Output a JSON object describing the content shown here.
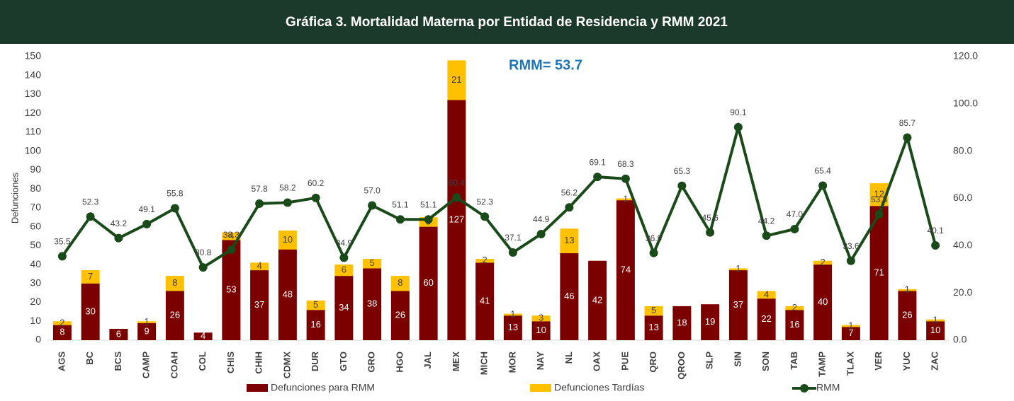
{
  "chart_data": {
    "type": "bar",
    "stacked": true,
    "title": "Gráfica 3.  Mortalidad Materna por Entidad de Residencia  y RMM 2021",
    "annotation": "RMM= 53.7",
    "y_label": "Defunciones",
    "categories": [
      "AGS",
      "BC",
      "BCS",
      "CAMP",
      "COAH",
      "COL",
      "CHIS",
      "CHIH",
      "CDMX",
      "DUR",
      "GTO",
      "GRO",
      "HGO",
      "JAL",
      "MEX",
      "MICH",
      "MOR",
      "NAY",
      "NL",
      "OAX",
      "PUE",
      "QRO",
      "QROO",
      "SLP",
      "SIN",
      "SON",
      "TAB",
      "TAMP",
      "TLAX",
      "VER",
      "YUC",
      "ZAC"
    ],
    "series": [
      {
        "name": "Defunciones para RMM",
        "color": "#7b0000",
        "text_color": "#ffffff",
        "values": [
          8,
          30,
          6,
          9,
          26,
          4,
          53,
          37,
          48,
          16,
          34,
          38,
          26,
          60,
          127,
          41,
          13,
          10,
          46,
          42,
          74,
          13,
          18,
          19,
          37,
          22,
          16,
          40,
          7,
          71,
          26,
          10
        ]
      },
      {
        "name": "Defunciones Tardías",
        "color": "#ffc000",
        "text_color": "#404040",
        "values": [
          2,
          7,
          0,
          1,
          8,
          0,
          4,
          4,
          10,
          5,
          6,
          5,
          8,
          5,
          21,
          2,
          1,
          3,
          13,
          0,
          1,
          5,
          0,
          0,
          1,
          4,
          2,
          2,
          1,
          12,
          1,
          1
        ]
      },
      {
        "name": "RMM",
        "color": "#1a4a1a",
        "type": "line",
        "axis": "y2",
        "values": [
          35.5,
          52.3,
          43.2,
          49.1,
          55.8,
          30.8,
          38.3,
          57.8,
          58.2,
          60.2,
          34.9,
          57.0,
          51.1,
          51.1,
          60.4,
          52.3,
          37.1,
          44.9,
          56.2,
          69.1,
          68.3,
          36.9,
          65.3,
          45.6,
          90.1,
          44.2,
          47.0,
          65.4,
          33.6,
          53.3,
          85.7,
          40.1
        ],
        "value_labels": [
          "35.5",
          "52.3",
          "43.2",
          "49.1",
          "55.8",
          "30.8",
          "38.3",
          "57.8",
          "58.2",
          "60.2",
          "34.9",
          "57.0",
          "51.1",
          "51.1",
          "60.4",
          "52.3",
          "37.1",
          "44.9",
          "56.2",
          "69.1",
          "68.3",
          "36.9",
          "65.3",
          "45.6",
          "90.1",
          "44.2",
          "47.0",
          "65.4",
          "33.6",
          "53.3",
          "85.7",
          "40.1"
        ]
      }
    ],
    "ylim": [
      0,
      150
    ],
    "yticks": [
      0,
      10,
      20,
      30,
      40,
      50,
      60,
      70,
      80,
      90,
      100,
      110,
      120,
      130,
      140,
      150
    ],
    "y2lim": [
      0,
      120
    ],
    "y2ticks": [
      {
        "value": 0,
        "label": "0.0"
      },
      {
        "value": 20,
        "label": "20.0"
      },
      {
        "value": 40,
        "label": "40.0"
      },
      {
        "value": 60,
        "label": "60.0"
      },
      {
        "value": 80,
        "label": "80.0"
      },
      {
        "value": 100,
        "label": "100.0"
      },
      {
        "value": 120,
        "label": "120.0"
      }
    ]
  }
}
